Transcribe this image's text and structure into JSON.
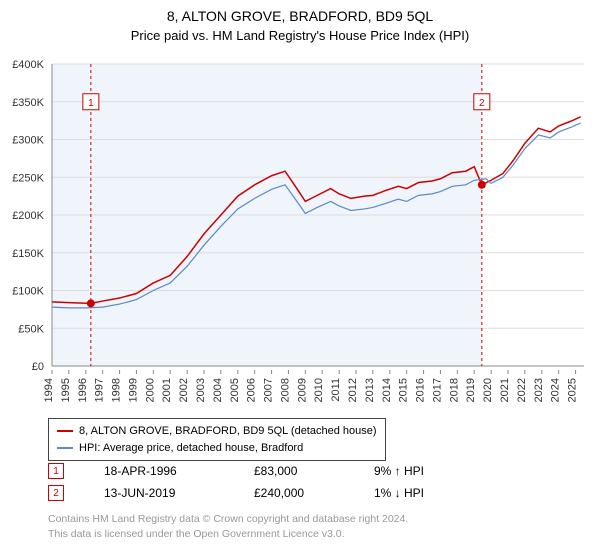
{
  "title": "8, ALTON GROVE, BRADFORD, BD9 5QL",
  "subtitle": "Price paid vs. HM Land Registry's House Price Index (HPI)",
  "chart": {
    "type": "line",
    "background_color": "#ffffff",
    "plot_shade_color": "#f0f4fb",
    "plot_shade_end_year": 2019.45,
    "grid_color": "#dddddd",
    "border_color": "#888888",
    "x": {
      "min": 1994,
      "max": 2025.5,
      "ticks": [
        1994,
        1995,
        1996,
        1997,
        1998,
        1999,
        2000,
        2001,
        2002,
        2003,
        2004,
        2005,
        2006,
        2007,
        2008,
        2009,
        2010,
        2011,
        2012,
        2013,
        2014,
        2015,
        2016,
        2017,
        2018,
        2019,
        2020,
        2021,
        2022,
        2023,
        2024,
        2025
      ],
      "tick_font_size": 11,
      "tick_color": "#333333",
      "rotate": -90
    },
    "y": {
      "min": 0,
      "max": 400000,
      "ticks": [
        0,
        50000,
        100000,
        150000,
        200000,
        250000,
        300000,
        350000,
        400000
      ],
      "tick_labels": [
        "£0",
        "£50K",
        "£100K",
        "£150K",
        "£200K",
        "£250K",
        "£300K",
        "£350K",
        "£400K"
      ],
      "tick_font_size": 11,
      "tick_color": "#333333"
    },
    "series": [
      {
        "name": "price_paid",
        "label": "8, ALTON GROVE, BRADFORD, BD9 5QL (detached house)",
        "color": "#cc0000",
        "line_width": 1.5,
        "points": [
          [
            1994,
            85000
          ],
          [
            1995,
            84000
          ],
          [
            1996.3,
            83000
          ],
          [
            1997,
            86000
          ],
          [
            1998,
            90000
          ],
          [
            1999,
            96000
          ],
          [
            2000,
            110000
          ],
          [
            2001,
            120000
          ],
          [
            2002,
            145000
          ],
          [
            2003,
            175000
          ],
          [
            2004,
            200000
          ],
          [
            2005,
            225000
          ],
          [
            2006,
            240000
          ],
          [
            2007,
            252000
          ],
          [
            2007.8,
            258000
          ],
          [
            2008.5,
            235000
          ],
          [
            2009,
            218000
          ],
          [
            2009.7,
            226000
          ],
          [
            2010.5,
            235000
          ],
          [
            2011,
            228000
          ],
          [
            2011.7,
            222000
          ],
          [
            2012.5,
            225000
          ],
          [
            2013,
            226000
          ],
          [
            2013.7,
            232000
          ],
          [
            2014.5,
            238000
          ],
          [
            2015,
            235000
          ],
          [
            2015.7,
            243000
          ],
          [
            2016.5,
            245000
          ],
          [
            2017,
            248000
          ],
          [
            2017.7,
            256000
          ],
          [
            2018.5,
            258000
          ],
          [
            2019,
            264000
          ],
          [
            2019.45,
            240000
          ],
          [
            2020,
            246000
          ],
          [
            2020.7,
            255000
          ],
          [
            2021.3,
            272000
          ],
          [
            2022,
            295000
          ],
          [
            2022.8,
            315000
          ],
          [
            2023.5,
            310000
          ],
          [
            2024,
            318000
          ],
          [
            2024.7,
            324000
          ],
          [
            2025.3,
            330000
          ]
        ]
      },
      {
        "name": "hpi",
        "label": "HPI: Average price, detached house, Bradford",
        "color": "#5a8bc4",
        "line_width": 1.2,
        "points": [
          [
            1994,
            78000
          ],
          [
            1995,
            77000
          ],
          [
            1996,
            77000
          ],
          [
            1997,
            78000
          ],
          [
            1998,
            82000
          ],
          [
            1999,
            88000
          ],
          [
            2000,
            100000
          ],
          [
            2001,
            110000
          ],
          [
            2002,
            132000
          ],
          [
            2003,
            160000
          ],
          [
            2004,
            185000
          ],
          [
            2005,
            208000
          ],
          [
            2006,
            222000
          ],
          [
            2007,
            234000
          ],
          [
            2007.8,
            240000
          ],
          [
            2008.5,
            218000
          ],
          [
            2009,
            202000
          ],
          [
            2009.7,
            210000
          ],
          [
            2010.5,
            218000
          ],
          [
            2011,
            212000
          ],
          [
            2011.7,
            206000
          ],
          [
            2012.5,
            208000
          ],
          [
            2013,
            210000
          ],
          [
            2013.7,
            215000
          ],
          [
            2014.5,
            221000
          ],
          [
            2015,
            218000
          ],
          [
            2015.7,
            226000
          ],
          [
            2016.5,
            228000
          ],
          [
            2017,
            231000
          ],
          [
            2017.7,
            238000
          ],
          [
            2018.5,
            240000
          ],
          [
            2019,
            246000
          ],
          [
            2019.7,
            248000
          ],
          [
            2020,
            242000
          ],
          [
            2020.7,
            250000
          ],
          [
            2021.3,
            266000
          ],
          [
            2022,
            288000
          ],
          [
            2022.8,
            306000
          ],
          [
            2023.5,
            302000
          ],
          [
            2024,
            310000
          ],
          [
            2024.7,
            316000
          ],
          [
            2025.3,
            322000
          ]
        ]
      }
    ],
    "vertical_markers": [
      {
        "id": "1",
        "year": 1996.3,
        "label_y": 350000,
        "line_color": "#cc0000",
        "dash": "3,3"
      },
      {
        "id": "2",
        "year": 2019.45,
        "label_y": 350000,
        "line_color": "#cc0000",
        "dash": "3,3"
      }
    ],
    "sale_markers": [
      {
        "year": 1996.3,
        "value": 83000,
        "color": "#cc0000"
      },
      {
        "year": 2019.45,
        "value": 240000,
        "color": "#cc0000"
      }
    ]
  },
  "legend": {
    "items": [
      {
        "color": "#cc0000",
        "label": "8, ALTON GROVE, BRADFORD, BD9 5QL (detached house)"
      },
      {
        "color": "#5a8bc4",
        "label": "HPI: Average price, detached house, Bradford"
      }
    ]
  },
  "transactions": [
    {
      "marker": "1",
      "date": "18-APR-1996",
      "price": "£83,000",
      "delta": "9% ↑ HPI"
    },
    {
      "marker": "2",
      "date": "13-JUN-2019",
      "price": "£240,000",
      "delta": "1% ↓ HPI"
    }
  ],
  "footer": {
    "line1": "Contains HM Land Registry data © Crown copyright and database right 2024.",
    "line2": "This data is licensed under the Open Government Licence v3.0."
  }
}
